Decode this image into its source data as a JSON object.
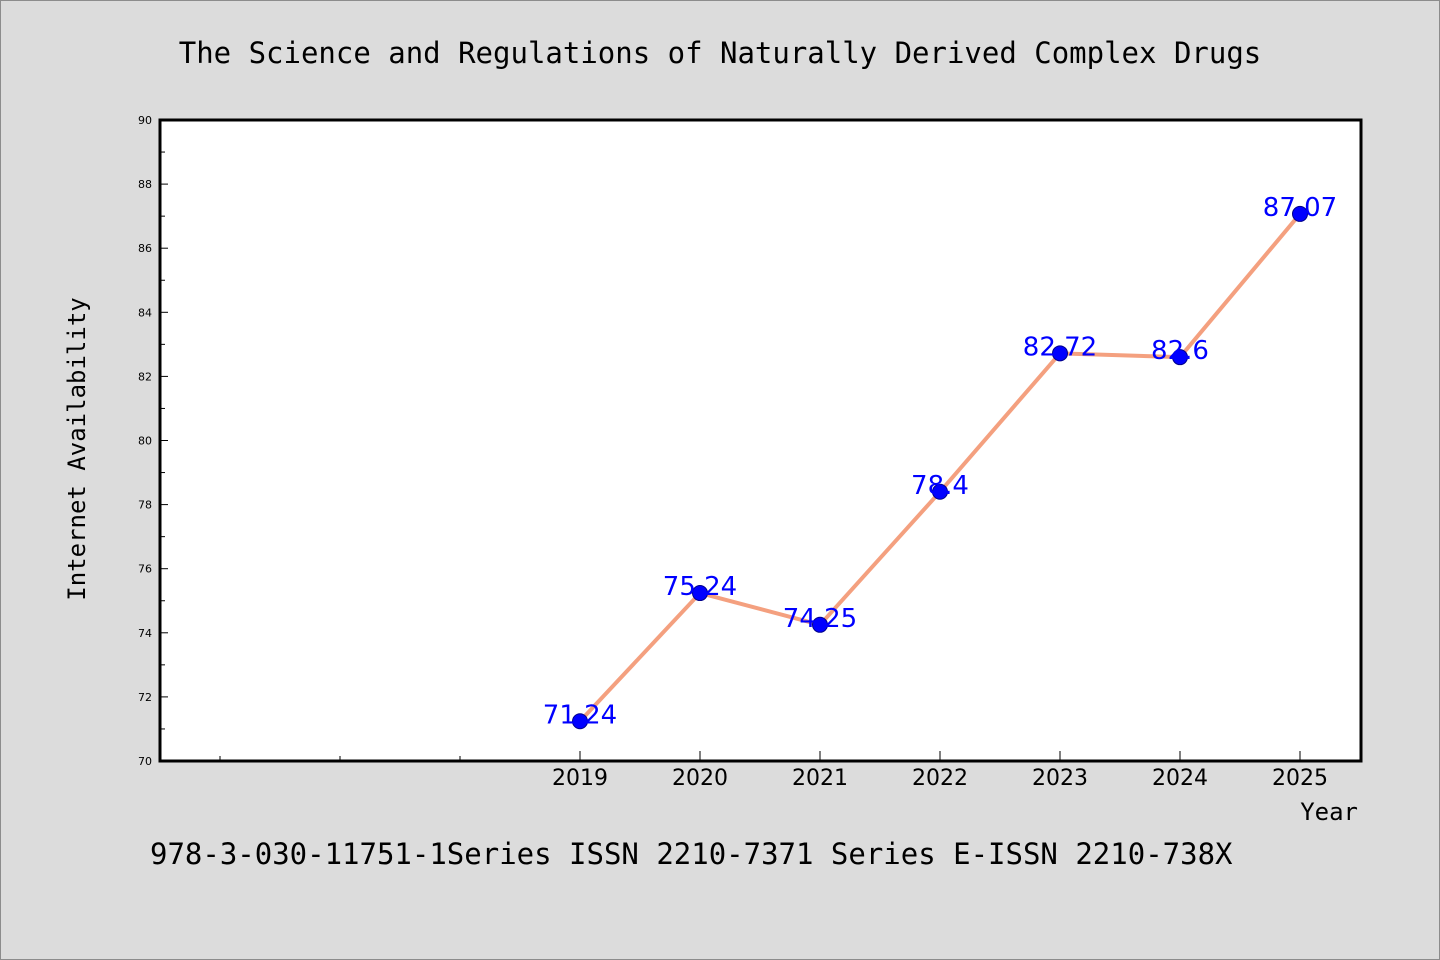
{
  "chart_data": {
    "type": "line",
    "title": "The Science and Regulations of Naturally Derived Complex Drugs",
    "xlabel": "Year",
    "ylabel": "Internet Availability",
    "caption": "978-3-030-11751-1Series ISSN 2210-7371 Series E-ISSN 2210-738X",
    "categories": [
      "2019",
      "2020",
      "2021",
      "2022",
      "2023",
      "2024",
      "2025"
    ],
    "values": [
      71.24,
      75.24,
      74.25,
      78.4,
      82.72,
      82.6,
      87.07
    ],
    "data_labels": [
      "71.24",
      "75.24",
      "74.25",
      "78.4",
      "82.72",
      "82.6",
      "87.07"
    ],
    "yticks": [
      "70",
      "72",
      "74",
      "76",
      "78",
      "80",
      "82",
      "84",
      "86",
      "88",
      "90"
    ],
    "ylim": [
      70,
      90
    ],
    "grid": false,
    "legend": "none",
    "colors": {
      "line": "#f4a07f",
      "marker": "#0000ff",
      "marker_edge": "#00008b",
      "label": "#0000ff",
      "background": "#dcdcdc",
      "plot_background": "#ffffff"
    }
  }
}
